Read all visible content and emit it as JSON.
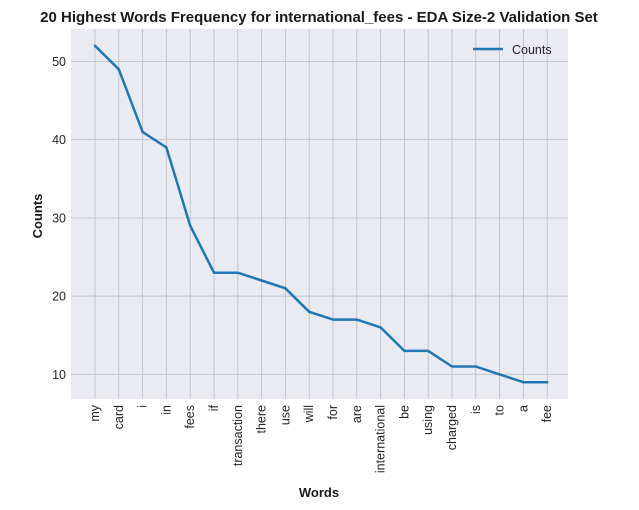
{
  "chart_data": {
    "type": "line",
    "title": "20 Highest Words Frequency for international_fees - EDA Size-2 Validation Set",
    "xlabel": "Words",
    "ylabel": "Counts",
    "categories": [
      "my",
      "card",
      "i",
      "in",
      "fees",
      "if",
      "transaction",
      "there",
      "use",
      "will",
      "for",
      "are",
      "international",
      "be",
      "using",
      "charged",
      "is",
      "to",
      "a",
      "fee"
    ],
    "series": [
      {
        "name": "Counts",
        "values": [
          52,
          49,
          41,
          39,
          29,
          23,
          23,
          22,
          21,
          18,
          17,
          17,
          16,
          13,
          13,
          11,
          11,
          10,
          9,
          9
        ]
      }
    ],
    "yticks": [
      10,
      20,
      30,
      40,
      50
    ],
    "ylim": [
      6.85,
      54.15
    ],
    "grid": true,
    "legend_position": "top-right",
    "colors": {
      "line": "#1f77b4",
      "plot_bg": "#eaeaf2",
      "grid": "#c0c0c8"
    }
  }
}
